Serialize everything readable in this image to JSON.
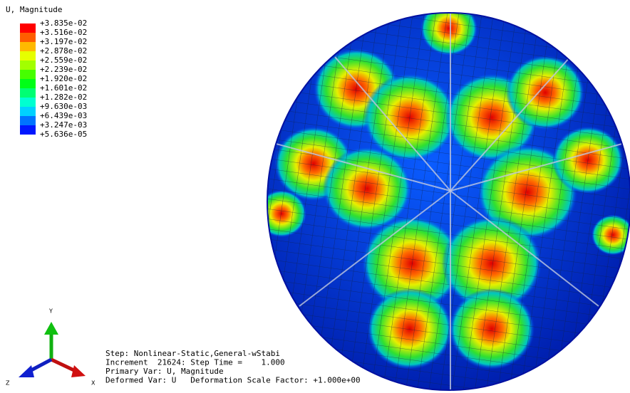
{
  "legend": {
    "title": "U, Magnitude",
    "labels": [
      "+3.835e-02",
      "+3.516e-02",
      "+3.197e-02",
      "+2.878e-02",
      "+2.559e-02",
      "+2.239e-02",
      "+1.920e-02",
      "+1.601e-02",
      "+1.282e-02",
      "+9.630e-03",
      "+6.439e-03",
      "+3.247e-03",
      "+5.636e-05"
    ],
    "colors": [
      "#ff0000",
      "#ff5d00",
      "#ffb900",
      "#e6ff00",
      "#a2ff00",
      "#46ff00",
      "#00ff17",
      "#00ff73",
      "#00ffd1",
      "#00d1ff",
      "#0073ff",
      "#0017ff"
    ]
  },
  "status": {
    "lines": [
      "Step: Nonlinear-Static,General-wStabi",
      "Increment  21624: Step Time =    1.000",
      "Primary Var: U, Magnitude",
      "Deformed Var: U   Deformation Scale Factor: +1.000e+00"
    ]
  },
  "triad": {
    "y": "Y",
    "x": "X",
    "z": "Z"
  }
}
